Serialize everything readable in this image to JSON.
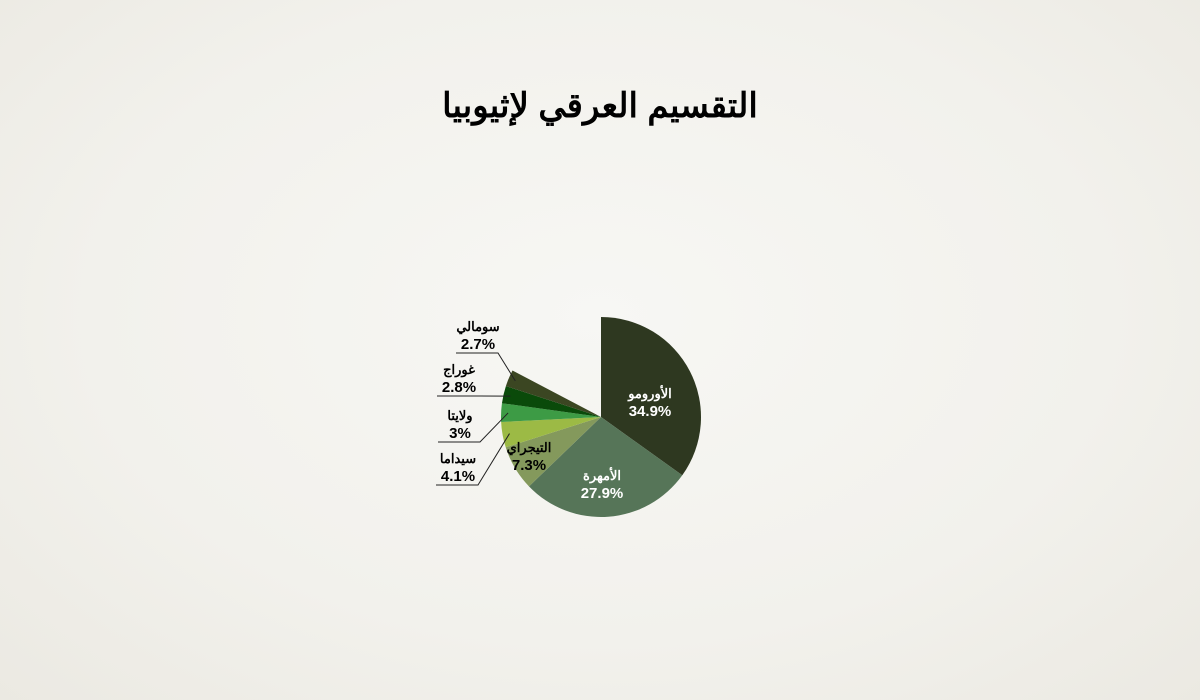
{
  "chart_data": {
    "type": "pie",
    "title": "التقسيم العرقي لإثيوبيا",
    "start": "top",
    "direction": "clockwise",
    "slices": [
      {
        "label": "الأورومو",
        "value": 34.9,
        "value_label": "34.9%",
        "color": "#2e3820",
        "label_color": "#ffffff",
        "label_placement": "inside"
      },
      {
        "label": "الأمهرة",
        "value": 27.9,
        "value_label": "27.9%",
        "color": "#567558",
        "label_color": "#ffffff",
        "label_placement": "inside"
      },
      {
        "label": "التيجراي",
        "value": 7.3,
        "value_label": "7.3%",
        "color": "#84995c",
        "label_color": "#000000",
        "label_placement": "inside"
      },
      {
        "label": "سيداما",
        "value": 4.1,
        "value_label": "4.1%",
        "color": "#9cba45",
        "label_color": "#000000",
        "label_placement": "outside"
      },
      {
        "label": "ولايتا",
        "value": 3,
        "value_label": "3%",
        "color": "#3d9b45",
        "label_color": "#000000",
        "label_placement": "outside"
      },
      {
        "label": "غوراج",
        "value": 2.8,
        "value_label": "2.8%",
        "color": "#0a4a0a",
        "label_color": "#000000",
        "label_placement": "outside"
      },
      {
        "label": "سومالي",
        "value": 2.7,
        "value_label": "2.7%",
        "color": "#3b4622",
        "label_color": "#000000",
        "label_placement": "outside"
      }
    ]
  }
}
